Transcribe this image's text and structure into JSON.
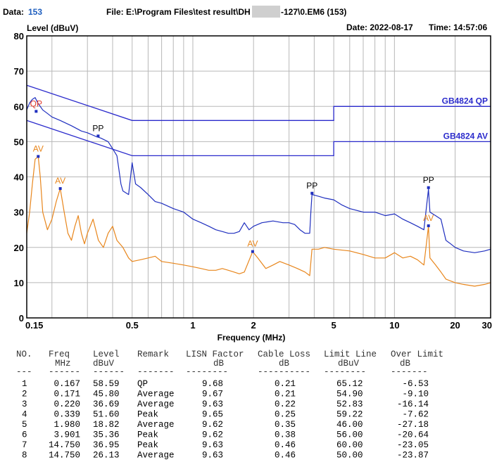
{
  "header": {
    "data_label": "Data:",
    "data_value": "153",
    "file_text": "File: E:\\Program Files\\test result\\DH",
    "file_suffix": "-127\\0.EM6  (153)",
    "date_text": "Date: 2022-08-17",
    "time_text": "Time: 14:57:06"
  },
  "colors": {
    "qp_trace": "#1f2fbf",
    "av_trace": "#e8861c",
    "limit": "#2b2bcc",
    "grid": "#b8b8b8",
    "frame": "#000000",
    "marker_qp": "#e23b2b",
    "marker_av": "#e8861c",
    "marker_pp": "#000000"
  },
  "chart_data": {
    "type": "line",
    "title": "",
    "xlabel": "Frequency (MHz)",
    "ylabel": "Level (dBuV)",
    "xscale": "log",
    "xlim": [
      0.15,
      30
    ],
    "ylim": [
      0,
      80
    ],
    "x_ticks": [
      0.15,
      0.5,
      1,
      2,
      5,
      10,
      20,
      30
    ],
    "x_tick_labels": [
      "0.15",
      "0.5",
      "1",
      "2",
      "5",
      "10",
      "20",
      "30"
    ],
    "y_ticks": [
      0,
      10,
      20,
      30,
      40,
      50,
      60,
      70,
      80
    ],
    "y_tick_labels": [
      "0",
      "10",
      "20",
      "30",
      "40",
      "50",
      "60",
      "70",
      "80"
    ],
    "limit_lines": [
      {
        "name": "GB4824 QP",
        "points": [
          [
            0.15,
            66
          ],
          [
            0.5,
            56
          ],
          [
            5,
            56
          ],
          [
            5,
            60
          ],
          [
            30,
            60
          ]
        ]
      },
      {
        "name": "GB4824 AV",
        "points": [
          [
            0.15,
            56
          ],
          [
            0.5,
            46
          ],
          [
            5,
            46
          ],
          [
            5,
            50
          ],
          [
            30,
            50
          ]
        ]
      }
    ],
    "series": [
      {
        "id": "peak",
        "points": [
          [
            0.15,
            59
          ],
          [
            0.155,
            61
          ],
          [
            0.16,
            62
          ],
          [
            0.165,
            62.5
          ],
          [
            0.17,
            61
          ],
          [
            0.18,
            59
          ],
          [
            0.19,
            58
          ],
          [
            0.2,
            57
          ],
          [
            0.22,
            56
          ],
          [
            0.25,
            54.5
          ],
          [
            0.28,
            53
          ],
          [
            0.3,
            52.5
          ],
          [
            0.33,
            51.5
          ],
          [
            0.35,
            51
          ],
          [
            0.38,
            50
          ],
          [
            0.4,
            48
          ],
          [
            0.42,
            46
          ],
          [
            0.43,
            42
          ],
          [
            0.44,
            38
          ],
          [
            0.45,
            36
          ],
          [
            0.48,
            35
          ],
          [
            0.5,
            44
          ],
          [
            0.52,
            38
          ],
          [
            0.55,
            37
          ],
          [
            0.6,
            35
          ],
          [
            0.65,
            33
          ],
          [
            0.7,
            32.5
          ],
          [
            0.8,
            31
          ],
          [
            0.9,
            30
          ],
          [
            1.0,
            28
          ],
          [
            1.1,
            27
          ],
          [
            1.2,
            26
          ],
          [
            1.3,
            25
          ],
          [
            1.4,
            24.5
          ],
          [
            1.5,
            24
          ],
          [
            1.6,
            24
          ],
          [
            1.7,
            24.5
          ],
          [
            1.8,
            27
          ],
          [
            1.9,
            25
          ],
          [
            2.0,
            26
          ],
          [
            2.2,
            27
          ],
          [
            2.5,
            27.5
          ],
          [
            2.8,
            27
          ],
          [
            3.0,
            27
          ],
          [
            3.2,
            26.5
          ],
          [
            3.4,
            25
          ],
          [
            3.6,
            24
          ],
          [
            3.8,
            24
          ],
          [
            3.85,
            30
          ],
          [
            3.9,
            35
          ],
          [
            4.2,
            34.5
          ],
          [
            4.5,
            34
          ],
          [
            5.0,
            33.5
          ],
          [
            5.5,
            32
          ],
          [
            6.0,
            31
          ],
          [
            7.0,
            30
          ],
          [
            8.0,
            30
          ],
          [
            9.0,
            29
          ],
          [
            10.0,
            29.5
          ],
          [
            11.0,
            28
          ],
          [
            12.0,
            27
          ],
          [
            13.0,
            26
          ],
          [
            14.0,
            25
          ],
          [
            14.75,
            36.5
          ],
          [
            15.0,
            30
          ],
          [
            16.0,
            29
          ],
          [
            17.0,
            28
          ],
          [
            18.0,
            22
          ],
          [
            19.0,
            21
          ],
          [
            20.0,
            20
          ],
          [
            22.0,
            19
          ],
          [
            25.0,
            18.5
          ],
          [
            28.0,
            19
          ],
          [
            30.0,
            19.5
          ]
        ]
      },
      {
        "id": "average",
        "points": [
          [
            0.15,
            24
          ],
          [
            0.155,
            30
          ],
          [
            0.16,
            38
          ],
          [
            0.165,
            45
          ],
          [
            0.171,
            45.8
          ],
          [
            0.175,
            40
          ],
          [
            0.18,
            30
          ],
          [
            0.19,
            25
          ],
          [
            0.2,
            28
          ],
          [
            0.21,
            33
          ],
          [
            0.22,
            36.7
          ],
          [
            0.23,
            30
          ],
          [
            0.24,
            24
          ],
          [
            0.25,
            22
          ],
          [
            0.26,
            26
          ],
          [
            0.27,
            29
          ],
          [
            0.28,
            24
          ],
          [
            0.29,
            21
          ],
          [
            0.3,
            24
          ],
          [
            0.32,
            28
          ],
          [
            0.34,
            22
          ],
          [
            0.36,
            20
          ],
          [
            0.38,
            24
          ],
          [
            0.4,
            26
          ],
          [
            0.42,
            22
          ],
          [
            0.45,
            20
          ],
          [
            0.48,
            17
          ],
          [
            0.5,
            16
          ],
          [
            0.55,
            16.5
          ],
          [
            0.6,
            17
          ],
          [
            0.65,
            17.5
          ],
          [
            0.7,
            16
          ],
          [
            0.8,
            15.5
          ],
          [
            0.9,
            15
          ],
          [
            1.0,
            14.5
          ],
          [
            1.1,
            14
          ],
          [
            1.2,
            13.5
          ],
          [
            1.3,
            13.5
          ],
          [
            1.4,
            14
          ],
          [
            1.5,
            13.5
          ],
          [
            1.6,
            13
          ],
          [
            1.7,
            12.5
          ],
          [
            1.8,
            13
          ],
          [
            1.98,
            18.8
          ],
          [
            2.1,
            17
          ],
          [
            2.3,
            14
          ],
          [
            2.5,
            15
          ],
          [
            2.7,
            16
          ],
          [
            3.0,
            15
          ],
          [
            3.3,
            14
          ],
          [
            3.6,
            13
          ],
          [
            3.8,
            12
          ],
          [
            3.9,
            19.5
          ],
          [
            4.2,
            19.5
          ],
          [
            4.5,
            20
          ],
          [
            5.0,
            19.5
          ],
          [
            6.0,
            19
          ],
          [
            7.0,
            18
          ],
          [
            8.0,
            17
          ],
          [
            9.0,
            17
          ],
          [
            10.0,
            18.5
          ],
          [
            11.0,
            17
          ],
          [
            12.0,
            17.5
          ],
          [
            13.0,
            16.5
          ],
          [
            14.0,
            15
          ],
          [
            14.75,
            26
          ],
          [
            15.0,
            17
          ],
          [
            16.0,
            15
          ],
          [
            17.0,
            13
          ],
          [
            18.0,
            11
          ],
          [
            20.0,
            10
          ],
          [
            22.0,
            9.5
          ],
          [
            25.0,
            9
          ],
          [
            28.0,
            9.5
          ],
          [
            30.0,
            10
          ]
        ]
      }
    ],
    "markers": [
      {
        "label": "QP",
        "kind": "qp",
        "freq": 0.167,
        "level": 58.59
      },
      {
        "label": "AV",
        "kind": "av",
        "freq": 0.171,
        "level": 45.8
      },
      {
        "label": "AV",
        "kind": "av",
        "freq": 0.22,
        "level": 36.69
      },
      {
        "label": "PP",
        "kind": "pp",
        "freq": 0.339,
        "level": 51.6
      },
      {
        "label": "AV",
        "kind": "av",
        "freq": 1.98,
        "level": 18.82
      },
      {
        "label": "PP",
        "kind": "pp",
        "freq": 3.901,
        "level": 35.36
      },
      {
        "label": "PP",
        "kind": "pp",
        "freq": 14.75,
        "level": 36.95
      },
      {
        "label": "AV",
        "kind": "av",
        "freq": 14.75,
        "level": 26.13
      }
    ]
  },
  "table": {
    "headers": [
      [
        "NO.",
        ""
      ],
      [
        "Freq",
        "MHz"
      ],
      [
        "Level",
        "dBuV"
      ],
      [
        "Remark",
        ""
      ],
      [
        "LISN Factor",
        "dB"
      ],
      [
        "Cable Loss",
        "dB"
      ],
      [
        "Limit Line",
        "dBuV"
      ],
      [
        "Over Limit",
        "dB"
      ]
    ],
    "underlines": [
      "---",
      "------",
      "------",
      "-------",
      "--------",
      "----------",
      "--------",
      "-------"
    ],
    "rows": [
      [
        "1",
        "0.167",
        "58.59",
        "QP",
        "9.68",
        "0.21",
        "65.12",
        "-6.53"
      ],
      [
        "2",
        "0.171",
        "45.80",
        "Average",
        "9.67",
        "0.21",
        "54.90",
        "-9.10"
      ],
      [
        "3",
        "0.220",
        "36.69",
        "Average",
        "9.63",
        "0.22",
        "52.83",
        "-16.14"
      ],
      [
        "4",
        "0.339",
        "51.60",
        "Peak",
        "9.65",
        "0.25",
        "59.22",
        "-7.62"
      ],
      [
        "5",
        "1.980",
        "18.82",
        "Average",
        "9.62",
        "0.35",
        "46.00",
        "-27.18"
      ],
      [
        "6",
        "3.901",
        "35.36",
        "Peak",
        "9.62",
        "0.38",
        "56.00",
        "-20.64"
      ],
      [
        "7",
        "14.750",
        "36.95",
        "Peak",
        "9.63",
        "0.46",
        "60.00",
        "-23.05"
      ],
      [
        "8",
        "14.750",
        "26.13",
        "Average",
        "9.63",
        "0.46",
        "50.00",
        "-23.87"
      ]
    ]
  }
}
